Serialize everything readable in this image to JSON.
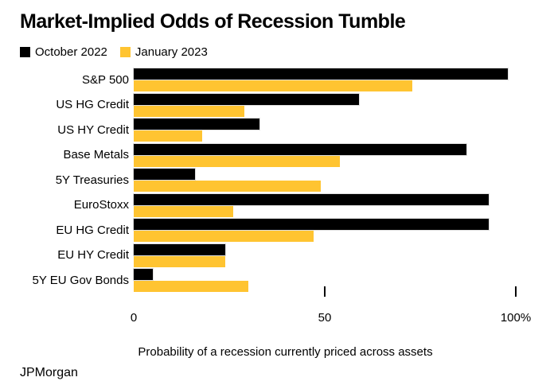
{
  "title": "Market-Implied Odds of Recession Tumble",
  "legend": [
    {
      "label": "October 2022",
      "color": "#000000"
    },
    {
      "label": "January 2023",
      "color": "#FFC431"
    }
  ],
  "chart_data": {
    "type": "bar",
    "orientation": "horizontal",
    "title": "Market-Implied Odds of Recession Tumble",
    "categories": [
      "S&P 500",
      "US HG Credit",
      "US HY Credit",
      "Base Metals",
      "5Y Treasuries",
      "EuroStoxx",
      "EU HG Credit",
      "EU HY Credit",
      "5Y EU Gov Bonds"
    ],
    "series": [
      {
        "name": "October 2022",
        "color": "#000000",
        "values": [
          98,
          59,
          33,
          87,
          16,
          93,
          93,
          24,
          5
        ]
      },
      {
        "name": "January 2023",
        "color": "#FFC431",
        "values": [
          73,
          29,
          18,
          54,
          49,
          26,
          47,
          24,
          30
        ]
      }
    ],
    "xlabel": "Probability of a recession currently priced across assets",
    "ylabel": "",
    "xlim": [
      0,
      100
    ],
    "xticks": [
      {
        "value": 0,
        "label": "0"
      },
      {
        "value": 50,
        "label": "50"
      },
      {
        "value": 100,
        "label": "100%"
      }
    ],
    "grid": false,
    "legend_position": "top-left"
  },
  "source": "JPMorgan"
}
